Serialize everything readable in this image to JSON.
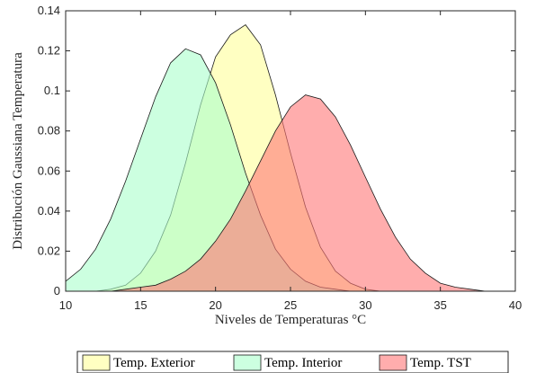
{
  "chart_data": {
    "type": "area",
    "xlabel": "Niveles de Temperaturas °C",
    "ylabel": "Distribución Gaussiana Temperatura",
    "xlim": [
      10,
      40
    ],
    "ylim": [
      0,
      0.14
    ],
    "xticks": [
      10,
      15,
      20,
      25,
      30,
      35,
      40
    ],
    "yticks": [
      0,
      0.02,
      0.04,
      0.06,
      0.08,
      0.1,
      0.12,
      0.14
    ],
    "xtick_labels": [
      "10",
      "15",
      "20",
      "25",
      "30",
      "35",
      "40"
    ],
    "ytick_labels": [
      "0",
      "0.02",
      "0.04",
      "0.06",
      "0.08",
      "0.1",
      "0.12",
      "0.14"
    ],
    "grid": false,
    "legend_position": "bottom",
    "series": [
      {
        "name": "Temp. Exterior",
        "color": "#ffff99",
        "x": [
          10,
          11,
          12,
          13,
          14,
          15,
          16,
          17,
          18,
          19,
          20,
          21,
          22,
          23,
          24,
          25,
          26,
          27,
          28,
          29,
          30,
          31,
          32
        ],
        "y": [
          0.0,
          0.0,
          0.0,
          0.001,
          0.003,
          0.009,
          0.02,
          0.038,
          0.064,
          0.093,
          0.117,
          0.128,
          0.133,
          0.123,
          0.098,
          0.069,
          0.042,
          0.022,
          0.01,
          0.004,
          0.001,
          0.0,
          0.0
        ]
      },
      {
        "name": "Temp. Interior",
        "color": "#aaffcc",
        "x": [
          10,
          11,
          12,
          13,
          14,
          15,
          16,
          17,
          18,
          19,
          20,
          21,
          22,
          23,
          24,
          25,
          26,
          27,
          28,
          29,
          30
        ],
        "y": [
          0.005,
          0.011,
          0.021,
          0.036,
          0.055,
          0.076,
          0.097,
          0.114,
          0.121,
          0.118,
          0.104,
          0.083,
          0.059,
          0.038,
          0.021,
          0.011,
          0.005,
          0.002,
          0.001,
          0.0,
          0.0
        ]
      },
      {
        "name": "Temp. TST",
        "color": "#ff7777",
        "x": [
          13,
          14,
          15,
          16,
          17,
          18,
          19,
          20,
          21,
          22,
          23,
          24,
          25,
          26,
          27,
          28,
          29,
          30,
          31,
          32,
          33,
          34,
          35,
          36,
          37,
          38
        ],
        "y": [
          0.0,
          0.001,
          0.002,
          0.003,
          0.006,
          0.01,
          0.016,
          0.025,
          0.036,
          0.05,
          0.065,
          0.08,
          0.092,
          0.098,
          0.096,
          0.087,
          0.073,
          0.057,
          0.041,
          0.027,
          0.016,
          0.009,
          0.004,
          0.002,
          0.001,
          0.0
        ]
      }
    ]
  }
}
